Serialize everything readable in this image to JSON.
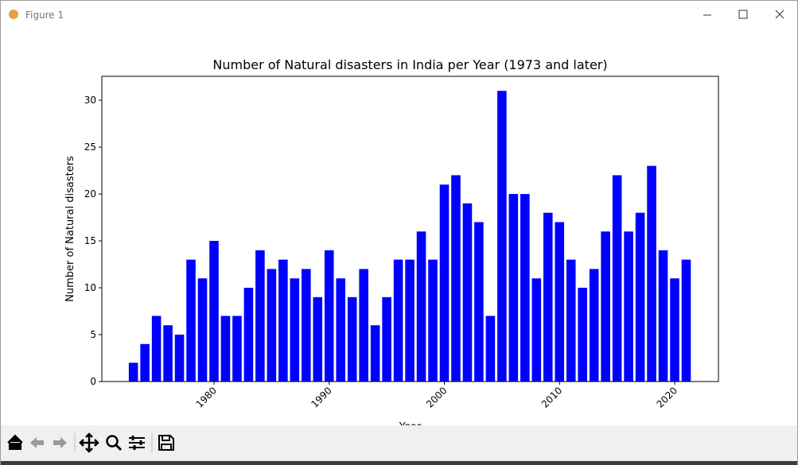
{
  "window": {
    "title": "Figure 1"
  },
  "chart_data": {
    "type": "bar",
    "title": "Number of Natural disasters in India per Year (1973 and later)",
    "x_label": "Year",
    "y_label": "Number of Natural disasters",
    "x": [
      1973,
      1974,
      1975,
      1976,
      1977,
      1978,
      1979,
      1980,
      1981,
      1982,
      1983,
      1984,
      1985,
      1986,
      1987,
      1988,
      1989,
      1990,
      1991,
      1992,
      1993,
      1994,
      1995,
      1996,
      1997,
      1998,
      1999,
      2000,
      2001,
      2002,
      2003,
      2004,
      2005,
      2006,
      2007,
      2008,
      2009,
      2010,
      2011,
      2012,
      2013,
      2014,
      2015,
      2016,
      2017,
      2018,
      2019,
      2020,
      2021
    ],
    "values": [
      2,
      4,
      7,
      6,
      5,
      13,
      11,
      15,
      7,
      7,
      10,
      14,
      12,
      13,
      11,
      12,
      9,
      14,
      11,
      9,
      12,
      6,
      9,
      13,
      13,
      16,
      13,
      21,
      22,
      19,
      17,
      7,
      31,
      20,
      20,
      11,
      18,
      17,
      13,
      10,
      12,
      16,
      22,
      16,
      18,
      23,
      14,
      11,
      13
    ],
    "color": "#0000ff",
    "xlim": [
      1970.26,
      2023.8
    ],
    "xticks": [
      1980,
      1990,
      2000,
      2010,
      2020
    ],
    "ylim": [
      0,
      32.55
    ],
    "yticks": [
      0,
      5,
      10,
      15,
      20,
      25,
      30
    ]
  }
}
